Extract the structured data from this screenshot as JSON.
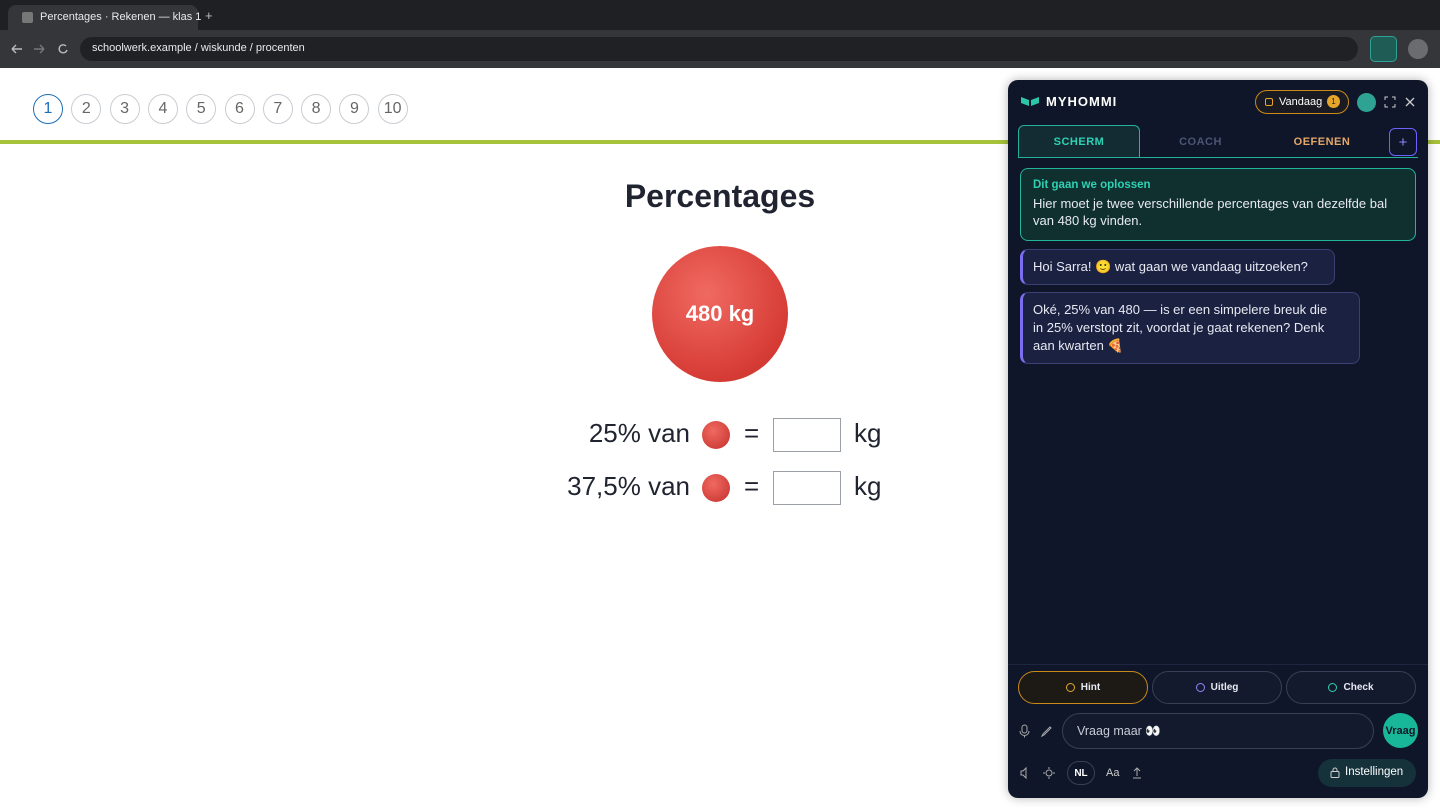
{
  "browser": {
    "tab_title": "Percentages · Rekenen — klas 1",
    "new_tab": "+",
    "url": "schoolwerk.example / wiskunde / procenten"
  },
  "exercise": {
    "pages": [
      1,
      2,
      3,
      4,
      5,
      6,
      7,
      8,
      9,
      10
    ],
    "title": "Percentages",
    "ball_label": "480 kg",
    "rows": [
      {
        "percent": "25% van",
        "equals": "=",
        "unit": "kg"
      },
      {
        "percent": "37,5% van",
        "equals": "=",
        "unit": "kg"
      }
    ]
  },
  "assistant": {
    "brand": "MYHOMMI",
    "today": "Vandaag",
    "today_count": 1,
    "tabs": [
      "SCHERM",
      "COACH",
      "OEFENEN"
    ],
    "add_tab": "+",
    "goal": {
      "title": "Dit gaan we oplossen",
      "text": "Hier moet je twee verschillende percentages van dezelfde bal van 480 kg vinden."
    },
    "messages": [
      "Hoi Sarra! 🙂 wat gaan we vandaag uitzoeken?",
      "Oké, 25% van 480 — is er een simpelere breuk die in 25% verstopt zit, voordat je gaat rekenen? Denk aan kwarten 🍕"
    ],
    "actions": [
      "Hint",
      "Uitleg",
      "Check"
    ],
    "input_placeholder": "Vraag maar 👀",
    "send": "Vraag",
    "language": "NL",
    "font_size": "Aa",
    "settings": "Instellingen"
  }
}
